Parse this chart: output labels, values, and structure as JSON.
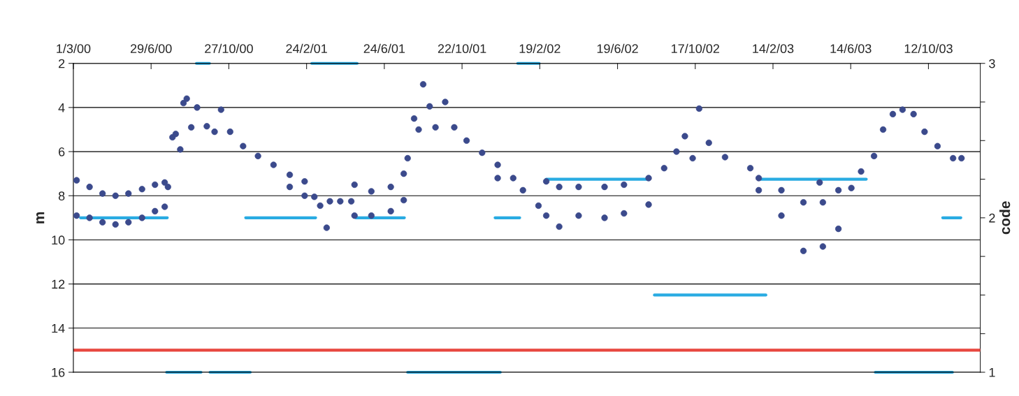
{
  "chart_data": {
    "type": "scatter",
    "xlabel": null,
    "ylabel": "m",
    "y2label": "code",
    "xlim": [
      "2000-03-01",
      "2003-12-31"
    ],
    "xticks": [
      {
        "value": "2000-03-01",
        "label": "1/3/00"
      },
      {
        "value": "2000-06-29",
        "label": "29/6/00"
      },
      {
        "value": "2000-10-27",
        "label": "27/10/00"
      },
      {
        "value": "2001-02-24",
        "label": "24/2/01"
      },
      {
        "value": "2001-06-24",
        "label": "24/6/01"
      },
      {
        "value": "2001-10-22",
        "label": "22/10/01"
      },
      {
        "value": "2002-02-19",
        "label": "19/2/02"
      },
      {
        "value": "2002-06-19",
        "label": "19/6/02"
      },
      {
        "value": "2002-10-17",
        "label": "17/10/02"
      },
      {
        "value": "2003-02-14",
        "label": "14/2/03"
      },
      {
        "value": "2003-06-14",
        "label": "14/6/03"
      },
      {
        "value": "2003-10-12",
        "label": "12/10/03"
      }
    ],
    "ylim": [
      16,
      2
    ],
    "yticks": [
      2,
      4,
      6,
      8,
      10,
      12,
      14,
      16
    ],
    "y2lim": [
      1,
      3
    ],
    "y2ticks": [
      1,
      {
        "value": 1.25,
        "label": null
      },
      {
        "value": 1.5,
        "label": null
      },
      {
        "value": 1.75,
        "label": null
      },
      2,
      {
        "value": 2.25,
        "label": null
      },
      {
        "value": 2.5,
        "label": null
      },
      {
        "value": 2.75,
        "label": null
      },
      3
    ],
    "grid": "y",
    "legend": false,
    "ref_lines": [
      {
        "axis": "y",
        "value": 15,
        "color": "#e8473f",
        "line_style": "solid"
      }
    ],
    "series": [
      {
        "color": "#3b4a8c",
        "marker": "circle",
        "x": [
          "2000-03-06",
          "2000-03-06",
          "2000-03-26",
          "2000-03-26",
          "2000-04-15",
          "2000-04-15",
          "2000-05-05",
          "2000-05-05",
          "2000-05-25",
          "2000-05-25",
          "2000-06-15",
          "2000-06-15",
          "2000-07-05",
          "2000-07-05",
          "2000-07-20",
          "2000-07-20",
          "2000-07-25",
          "2000-08-01",
          "2000-08-06",
          "2000-08-13",
          "2000-08-18",
          "2000-08-23",
          "2000-08-30",
          "2000-09-08",
          "2000-09-23",
          "2000-10-05",
          "2000-10-15",
          "2000-10-29",
          "2000-11-18",
          "2000-12-11",
          "2001-01-04",
          "2001-01-29",
          "2001-01-29",
          "2001-02-21",
          "2001-02-21",
          "2001-03-08",
          "2001-03-17",
          "2001-03-27",
          "2001-04-01",
          "2001-04-17",
          "2001-05-04",
          "2001-05-09",
          "2001-05-09",
          "2001-06-04",
          "2001-06-04",
          "2001-07-04",
          "2001-07-04",
          "2001-07-24",
          "2001-07-24",
          "2001-07-30",
          "2001-08-09",
          "2001-08-16",
          "2001-08-23",
          "2001-09-02",
          "2001-09-11",
          "2001-09-26",
          "2001-10-10",
          "2001-10-29",
          "2001-11-22",
          "2001-12-16",
          "2001-12-16",
          "2002-01-09",
          "2002-01-24",
          "2002-02-17",
          "2002-03-01",
          "2002-03-01",
          "2002-03-21",
          "2002-03-21",
          "2002-04-20",
          "2002-04-20",
          "2002-05-30",
          "2002-05-30",
          "2002-06-29",
          "2002-06-29",
          "2002-08-06",
          "2002-08-06",
          "2002-08-30",
          "2002-09-18",
          "2002-10-01",
          "2002-10-13",
          "2002-10-23",
          "2002-11-07",
          "2002-12-02",
          "2003-01-10",
          "2003-01-23",
          "2003-01-23",
          "2003-02-27",
          "2003-02-27",
          "2003-04-02",
          "2003-04-02",
          "2003-04-27",
          "2003-05-02",
          "2003-05-02",
          "2003-05-26",
          "2003-05-26",
          "2003-06-15",
          "2003-06-30",
          "2003-07-20",
          "2003-08-03",
          "2003-08-18",
          "2003-09-02",
          "2003-09-19",
          "2003-10-06",
          "2003-10-26",
          "2003-11-19",
          "2003-12-02"
        ],
        "values": [
          7.3,
          8.9,
          7.6,
          9.0,
          7.9,
          9.2,
          8.0,
          9.3,
          7.9,
          9.2,
          7.7,
          9.0,
          7.5,
          8.7,
          7.4,
          8.5,
          7.6,
          5.35,
          5.2,
          5.9,
          3.8,
          3.6,
          4.9,
          4.0,
          4.85,
          5.1,
          4.1,
          5.1,
          5.75,
          6.2,
          6.6,
          7.05,
          7.6,
          7.35,
          8.0,
          8.05,
          8.45,
          9.45,
          8.25,
          8.25,
          8.25,
          7.5,
          8.9,
          7.8,
          8.9,
          7.6,
          8.7,
          7.0,
          8.2,
          6.3,
          4.5,
          5.0,
          2.95,
          3.95,
          4.9,
          3.75,
          4.9,
          5.5,
          6.05,
          6.6,
          7.2,
          7.2,
          7.75,
          8.45,
          7.35,
          8.9,
          7.6,
          9.4,
          7.6,
          8.9,
          7.6,
          9.0,
          7.5,
          8.8,
          7.2,
          8.4,
          6.75,
          6.0,
          5.3,
          6.3,
          4.05,
          5.6,
          6.25,
          6.75,
          7.2,
          7.75,
          7.75,
          8.9,
          8.3,
          10.5,
          7.4,
          8.3,
          10.3,
          7.75,
          9.5,
          7.65,
          6.9,
          6.2,
          5.0,
          4.3,
          4.1,
          4.3,
          5.1,
          5.75,
          6.3,
          6.3
        ]
      },
      {
        "type": "line",
        "axis": "y2",
        "color": "#29abe2",
        "line_style": "solid",
        "x": [
          "2000-09-07",
          "2000-09-27",
          null,
          "2001-03-04",
          "2001-05-13",
          null,
          "2002-01-16",
          "2002-02-18"
        ],
        "values": [
          3,
          3,
          null,
          3,
          3,
          null,
          3,
          3
        ]
      },
      {
        "type": "line",
        "axis": "y2",
        "color": "#29abe2",
        "line_style": "solid",
        "x": [
          "2000-03-12",
          "2000-07-24",
          null,
          "2000-11-22",
          "2001-03-10",
          null,
          "2001-05-11",
          "2001-07-25",
          null,
          "2001-12-12",
          "2002-01-19",
          null,
          "2003-11-03",
          "2003-12-01"
        ],
        "values": [
          2,
          2,
          null,
          2,
          2,
          null,
          2,
          2,
          null,
          2,
          2,
          null,
          2,
          2
        ]
      },
      {
        "type": "line",
        "axis": "y2",
        "color": "#29abe2",
        "line_style": "solid",
        "x": [
          "2002-03-01",
          "2002-08-06",
          null,
          "2003-01-23",
          "2003-07-08"
        ],
        "values": [
          2.25,
          2.25,
          null,
          2.25,
          2.25
        ]
      },
      {
        "type": "line",
        "axis": "y2",
        "color": "#29abe2",
        "line_style": "solid",
        "x": [
          "2002-08-15",
          "2003-02-03"
        ],
        "values": [
          1.5,
          1.5
        ]
      },
      {
        "type": "line",
        "axis": "y2",
        "color": "#29abe2",
        "line_style": "solid",
        "x": [
          "2000-07-23",
          "2000-09-14",
          null,
          "2000-09-28",
          "2000-11-29",
          null,
          "2001-07-30",
          "2001-12-20",
          null,
          "2003-07-22",
          "2003-11-18"
        ],
        "values": [
          1,
          1,
          null,
          1,
          1,
          null,
          1,
          1,
          null,
          1,
          1
        ]
      }
    ]
  }
}
